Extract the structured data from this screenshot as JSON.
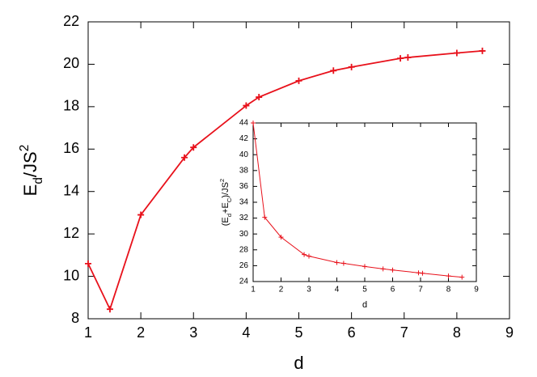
{
  "chart_data": [
    {
      "type": "line",
      "color": "#e8111b",
      "x": [
        1,
        1.414,
        2,
        2.828,
        3,
        4,
        4.243,
        5,
        5.657,
        6,
        6.928,
        7.071,
        8,
        8.485
      ],
      "values": [
        10.6,
        8.45,
        12.9,
        15.6,
        16.08,
        18.05,
        18.45,
        19.22,
        19.7,
        19.87,
        20.28,
        20.32,
        20.53,
        20.63
      ],
      "xlim": [
        1,
        9
      ],
      "ylim": [
        8,
        22
      ],
      "xticks": [
        1,
        2,
        3,
        4,
        5,
        6,
        7,
        8,
        9
      ],
      "yticks": [
        8,
        10,
        12,
        14,
        16,
        18,
        20,
        22
      ],
      "xlabel": "d",
      "ylabel_parts": [
        "E",
        "d",
        "/JS",
        "2"
      ]
    },
    {
      "type": "line",
      "color": "#e8111b",
      "x": [
        1,
        1.414,
        2,
        2.828,
        3,
        4,
        4.243,
        5,
        5.657,
        6,
        6.928,
        7.071,
        8,
        8.485
      ],
      "values": [
        44,
        32.1,
        29.6,
        27.4,
        27.2,
        26.4,
        26.3,
        25.9,
        25.6,
        25.45,
        25.1,
        25.05,
        24.7,
        24.55
      ],
      "xlim": [
        1,
        9
      ],
      "ylim": [
        24,
        44
      ],
      "xticks": [
        1,
        2,
        3,
        4,
        5,
        6,
        7,
        8,
        9
      ],
      "yticks": [
        24,
        26,
        28,
        30,
        32,
        34,
        36,
        38,
        40,
        42,
        44
      ],
      "xlabel": "d",
      "ylabel_parts": [
        "(E",
        "d",
        "+E",
        "C",
        ")/JS",
        "2"
      ]
    }
  ]
}
